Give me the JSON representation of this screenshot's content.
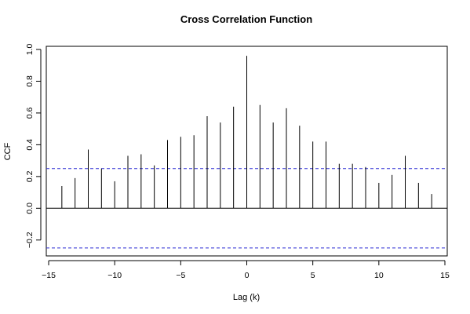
{
  "chart_data": {
    "type": "bar",
    "title": "Cross Correlation Function",
    "xlabel": "Lag (k)",
    "ylabel": "CCF",
    "xlim": [
      -15,
      15
    ],
    "ylim": [
      -0.3,
      1.0
    ],
    "x_ticks": [
      -15,
      -10,
      -5,
      0,
      5,
      10,
      15
    ],
    "x_tick_labels": [
      "−15",
      "−10",
      "−5",
      "0",
      "5",
      "10",
      "15"
    ],
    "y_ticks": [
      -0.2,
      0.0,
      0.2,
      0.4,
      0.6,
      0.8,
      1.0
    ],
    "y_tick_labels": [
      "−0.2",
      "0.0",
      "0.2",
      "0.4",
      "0.6",
      "0.8",
      "1.0"
    ],
    "confidence_band": [
      0.25,
      -0.25
    ],
    "lags": [
      -14,
      -13,
      -12,
      -11,
      -10,
      -9,
      -8,
      -7,
      -6,
      -5,
      -4,
      -3,
      -2,
      -1,
      0,
      1,
      2,
      3,
      4,
      5,
      6,
      7,
      8,
      9,
      10,
      11,
      12,
      13,
      14
    ],
    "values": [
      0.14,
      0.19,
      0.37,
      0.25,
      0.17,
      0.33,
      0.34,
      0.27,
      0.43,
      0.45,
      0.46,
      0.58,
      0.54,
      0.64,
      0.96,
      0.65,
      0.54,
      0.63,
      0.52,
      0.42,
      0.42,
      0.28,
      0.28,
      0.26,
      0.16,
      0.21,
      0.33,
      0.16,
      0.09
    ],
    "grid": false,
    "colors": {
      "spikes": "#000000",
      "zero_line": "#000000",
      "confidence": "#2b2bd4"
    }
  }
}
